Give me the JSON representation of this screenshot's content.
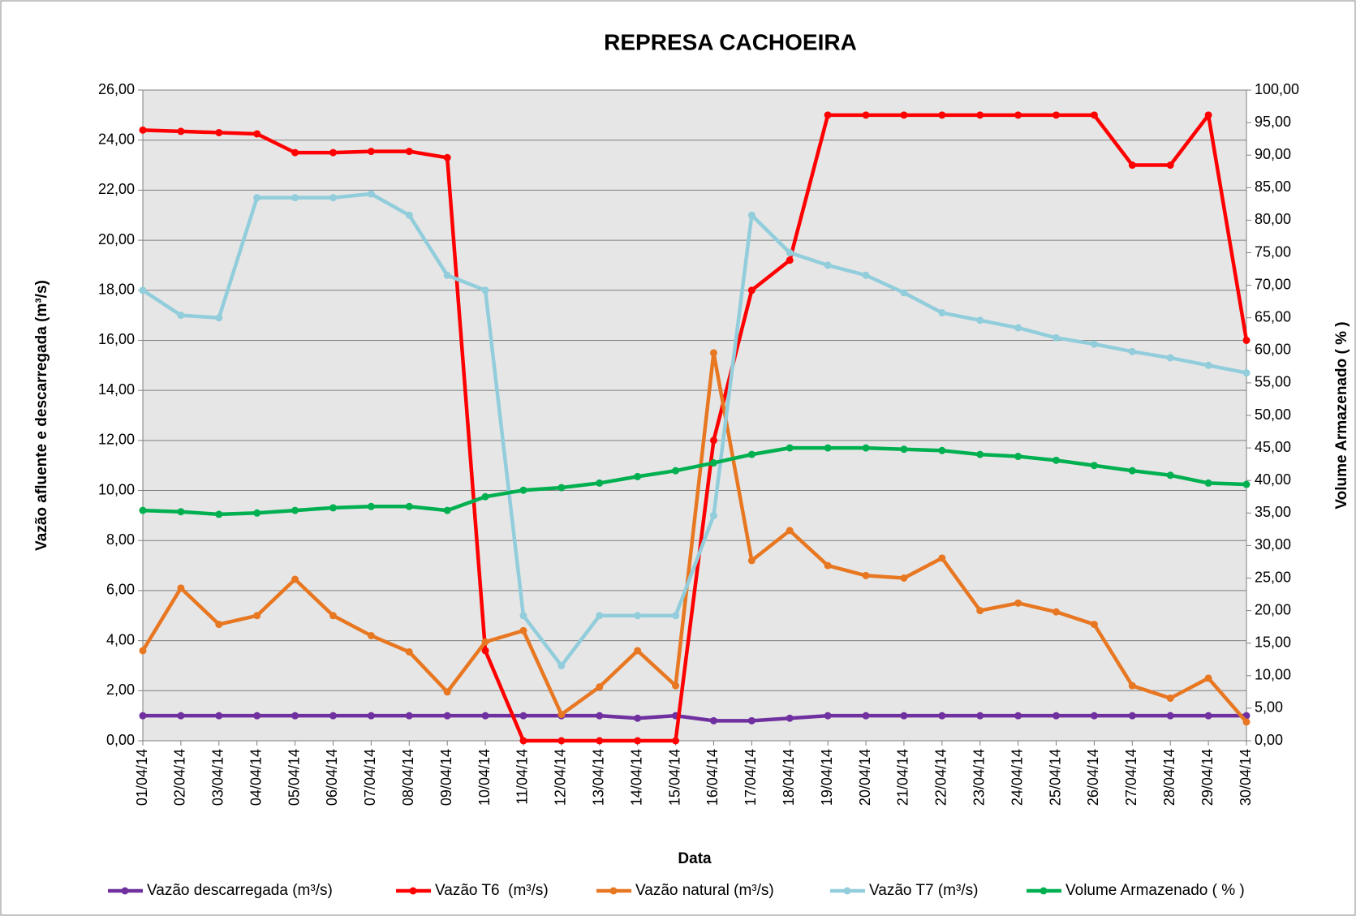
{
  "chart_data": {
    "type": "line",
    "title": "REPRESA CACHOEIRA",
    "x_label": "Data",
    "y_label": "Vazão afluente e descarregada (m³/s)",
    "y2_label": "Volume Armazenado ( % )",
    "categories": [
      "01/04/14",
      "02/04/14",
      "03/04/14",
      "04/04/14",
      "05/04/14",
      "06/04/14",
      "07/04/14",
      "08/04/14",
      "09/04/14",
      "10/04/14",
      "11/04/14",
      "12/04/14",
      "13/04/14",
      "14/04/14",
      "15/04/14",
      "16/04/14",
      "17/04/14",
      "18/04/14",
      "19/04/14",
      "20/04/14",
      "21/04/14",
      "22/04/14",
      "23/04/14",
      "24/04/14",
      "25/04/14",
      "26/04/14",
      "27/04/14",
      "28/04/14",
      "29/04/14",
      "30/04/14"
    ],
    "series": [
      {
        "name": "Vazão descarregada (m³/s)",
        "color": "#7030a0",
        "values": [
          1.0,
          1.0,
          1.0,
          1.0,
          1.0,
          1.0,
          1.0,
          1.0,
          1.0,
          1.0,
          1.0,
          1.0,
          1.0,
          0.9,
          1.0,
          0.8,
          0.8,
          0.9,
          1.0,
          1.0,
          1.0,
          1.0,
          1.0,
          1.0,
          1.0,
          1.0,
          1.0,
          1.0,
          1.0,
          1.0
        ]
      },
      {
        "name": "Vazão T6  (m³/s)",
        "color": "#ff0000",
        "values": [
          24.4,
          24.35,
          24.3,
          24.25,
          23.5,
          23.5,
          23.55,
          23.55,
          23.3,
          3.6,
          0,
          0,
          0,
          0,
          0,
          12,
          18,
          19.2,
          25,
          25,
          25,
          25,
          25,
          25,
          25,
          25,
          23,
          23,
          25,
          16
        ]
      },
      {
        "name": "Vazão natural (m³/s)",
        "color": "#e87722",
        "values": [
          3.6,
          6.1,
          4.65,
          5.0,
          6.45,
          5.0,
          4.2,
          3.55,
          1.95,
          3.95,
          4.4,
          1.05,
          2.15,
          3.6,
          2.2,
          15.5,
          7.2,
          8.4,
          7.0,
          6.6,
          6.5,
          7.3,
          5.2,
          5.5,
          5.15,
          4.65,
          2.2,
          1.7,
          2.5,
          0.75
        ]
      },
      {
        "name": "Vazão T7 (m³/s)",
        "color": "#92cddc",
        "values": [
          18.0,
          17.0,
          16.9,
          21.7,
          21.7,
          21.7,
          21.85,
          21.0,
          18.6,
          18.0,
          5.0,
          3.0,
          5.0,
          5.0,
          5.0,
          9.0,
          21.0,
          19.5,
          19.0,
          18.6,
          17.9,
          17.1,
          16.8,
          16.5,
          16.1,
          15.85,
          15.55,
          15.3,
          15.0,
          14.7
        ]
      },
      {
        "name": "Volume Armazenado ( % )",
        "color": "#00b050",
        "axis": "y2",
        "values": [
          35.4,
          35.2,
          34.8,
          35.0,
          35.4,
          35.8,
          36.0,
          36.0,
          35.4,
          37.5,
          38.5,
          38.9,
          39.6,
          40.6,
          41.5,
          42.7,
          44.0,
          45.0,
          45.0,
          45.0,
          44.8,
          44.6,
          44.0,
          43.7,
          43.1,
          42.3,
          41.5,
          40.8,
          39.6,
          39.4
        ]
      }
    ],
    "ylim": [
      0,
      26
    ],
    "yticks": [
      {
        "value": 0,
        "label": "0,00"
      },
      {
        "value": 2,
        "label": "2,00"
      },
      {
        "value": 4,
        "label": "4,00"
      },
      {
        "value": 6,
        "label": "6,00"
      },
      {
        "value": 8,
        "label": "8,00"
      },
      {
        "value": 10,
        "label": "10,00"
      },
      {
        "value": 12,
        "label": "12,00"
      },
      {
        "value": 14,
        "label": "14,00"
      },
      {
        "value": 16,
        "label": "16,00"
      },
      {
        "value": 18,
        "label": "18,00"
      },
      {
        "value": 20,
        "label": "20,00"
      },
      {
        "value": 22,
        "label": "22,00"
      },
      {
        "value": 24,
        "label": "24,00"
      },
      {
        "value": 26,
        "label": "26,00"
      }
    ],
    "y2lim": [
      0,
      100
    ],
    "y2ticks": [
      {
        "value": 0,
        "label": "0,00"
      },
      {
        "value": 5,
        "label": "5,00"
      },
      {
        "value": 10,
        "label": "10,00"
      },
      {
        "value": 15,
        "label": "15,00"
      },
      {
        "value": 20,
        "label": "20,00"
      },
      {
        "value": 25,
        "label": "25,00"
      },
      {
        "value": 30,
        "label": "30,00"
      },
      {
        "value": 35,
        "label": "35,00"
      },
      {
        "value": 40,
        "label": "40,00"
      },
      {
        "value": 45,
        "label": "45,00"
      },
      {
        "value": 50,
        "label": "50,00"
      },
      {
        "value": 55,
        "label": "55,00"
      },
      {
        "value": 60,
        "label": "60,00"
      },
      {
        "value": 65,
        "label": "65,00"
      },
      {
        "value": 70,
        "label": "70,00"
      },
      {
        "value": 75,
        "label": "75,00"
      },
      {
        "value": 80,
        "label": "80,00"
      },
      {
        "value": 85,
        "label": "85,00"
      },
      {
        "value": 90,
        "label": "90,00"
      },
      {
        "value": 95,
        "label": "95,00"
      },
      {
        "value": 100,
        "label": "100,00"
      }
    ],
    "grid": true,
    "legend": "bottom"
  }
}
